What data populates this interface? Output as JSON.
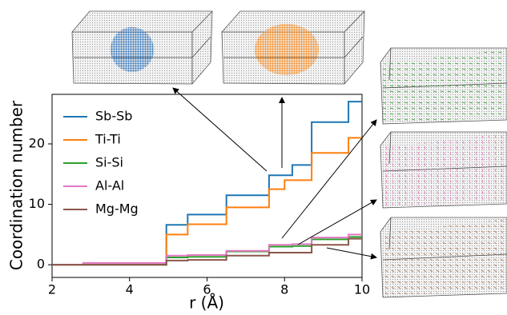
{
  "chart_data": {
    "type": "line",
    "drawstyle": "steps",
    "x_label": "r (Å)",
    "y_label": "Coordination number",
    "x": [
      2,
      2.8,
      2.8,
      4.95,
      4.95,
      5.5,
      5.5,
      6.5,
      6.5,
      7.6,
      7.6,
      8.0,
      8.0,
      8.2,
      8.2,
      8.7,
      8.7,
      9.65,
      9.65,
      10
    ],
    "series": [
      {
        "name": "Sb-Sb",
        "color": "#1f77b4",
        "values": [
          0,
          0,
          0,
          0,
          6.6,
          6.6,
          8.3,
          8.3,
          11.5,
          11.5,
          14.8,
          14.8,
          14.8,
          14.8,
          16.5,
          16.5,
          23.6,
          23.6,
          27,
          27
        ]
      },
      {
        "name": "Ti-Ti",
        "color": "#ff7f0e",
        "values": [
          0,
          0,
          0,
          0,
          5,
          5,
          6.7,
          6.7,
          9.5,
          9.5,
          12.5,
          12.5,
          14,
          14,
          14,
          14,
          18.5,
          18.5,
          21,
          21
        ]
      },
      {
        "name": "Si-Si",
        "color": "#2ca02c",
        "values": [
          0,
          0,
          0,
          0,
          1.2,
          1.2,
          1.3,
          1.3,
          2.2,
          2.2,
          3,
          3,
          3,
          3,
          3.1,
          3.1,
          4.2,
          4.2,
          4.6,
          4.6
        ]
      },
      {
        "name": "Al-Al",
        "color": "#e377c2",
        "values": [
          0,
          0,
          0.3,
          0.3,
          1.5,
          1.5,
          1.6,
          1.6,
          2.3,
          2.3,
          3.3,
          3.3,
          3.3,
          3.3,
          3.4,
          3.4,
          4.5,
          4.5,
          5,
          5
        ]
      },
      {
        "name": "Mg-Mg",
        "color": "#8c564b",
        "values": [
          0,
          0,
          0,
          0,
          0.7,
          0.7,
          0.8,
          0.8,
          1.5,
          1.5,
          2,
          2,
          2,
          2,
          2,
          2,
          3.3,
          3.3,
          4.3,
          4.3
        ]
      }
    ],
    "xlim": [
      2,
      10
    ],
    "xticks": [
      2,
      4,
      6,
      8,
      10
    ],
    "ylim": [
      -2.1,
      28.2
    ],
    "yticks": [
      0,
      10,
      20
    ],
    "legend": "upper left"
  }
}
